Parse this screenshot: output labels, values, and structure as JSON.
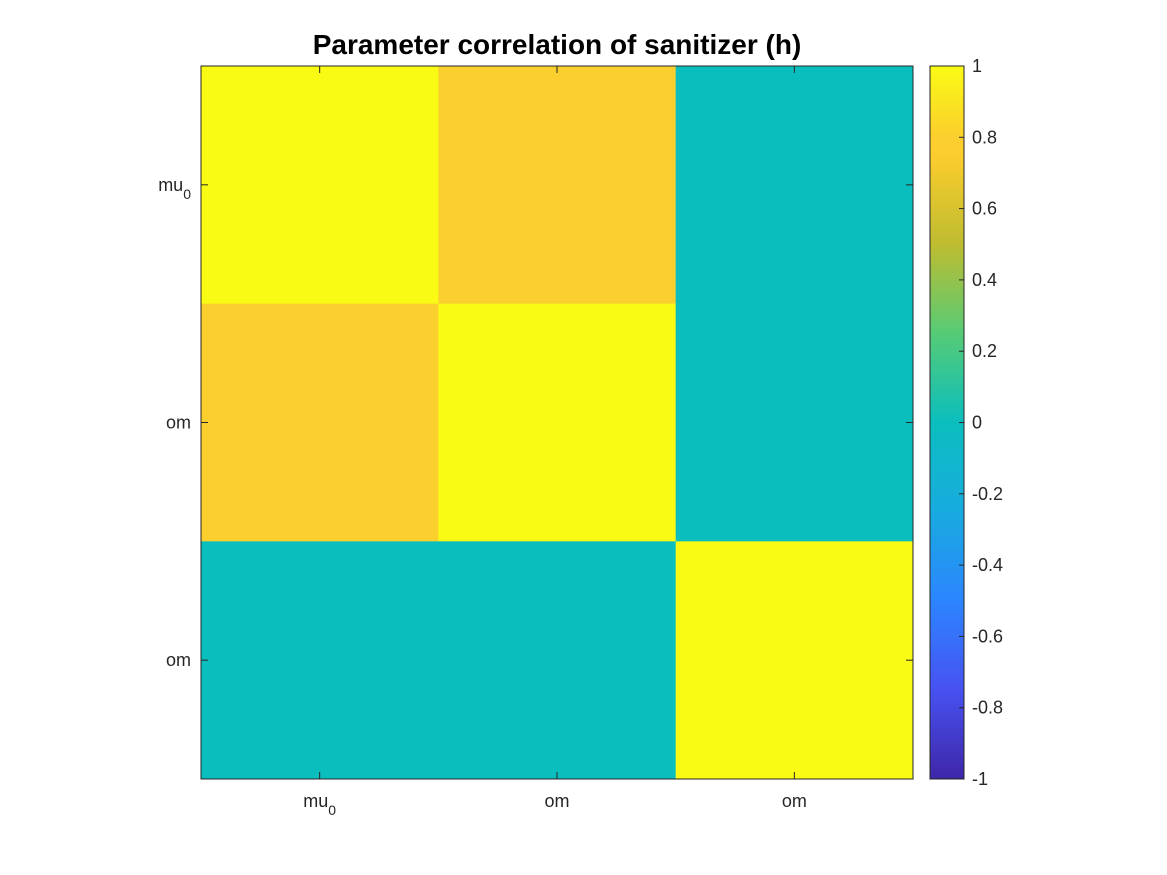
{
  "chart_data": {
    "type": "heatmap",
    "title": "Parameter correlation of sanitizer (h)",
    "x_labels": [
      {
        "base": "mu",
        "sub": "0"
      },
      {
        "base": "om",
        "sub": ""
      },
      {
        "base": "om",
        "sub": ""
      }
    ],
    "y_labels": [
      {
        "base": "mu",
        "sub": "0"
      },
      {
        "base": "om",
        "sub": ""
      },
      {
        "base": "om",
        "sub": ""
      }
    ],
    "values": [
      [
        1.0,
        0.8,
        0.0
      ],
      [
        0.8,
        1.0,
        0.0
      ],
      [
        0.0,
        0.0,
        1.0
      ]
    ],
    "clim": [
      -1,
      1
    ],
    "colormap": "parula",
    "colorbar": {
      "location": "right",
      "ticks": [
        "1",
        "0.8",
        "0.6",
        "0.4",
        "0.2",
        "0",
        "-0.2",
        "-0.4",
        "-0.6",
        "-0.8",
        "-1"
      ]
    }
  }
}
